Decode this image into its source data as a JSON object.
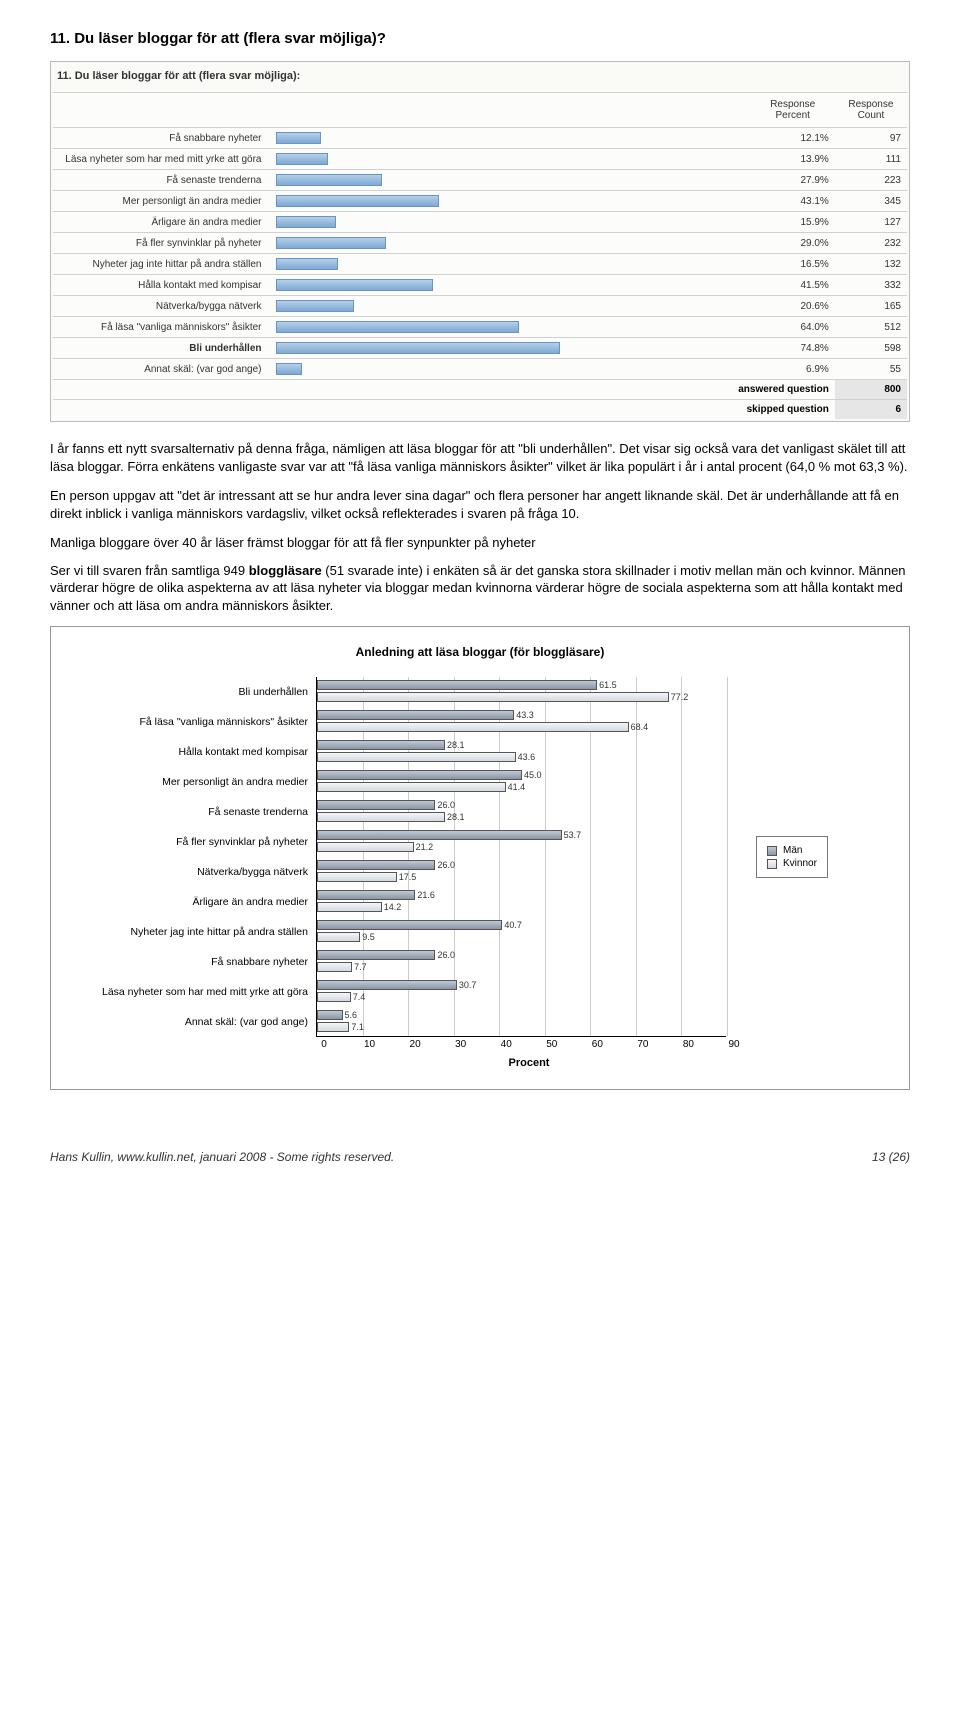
{
  "heading": "11. Du läser bloggar för att (flera svar möjliga)?",
  "survey": {
    "title": "11. Du läser bloggar för att (flera svar möjliga):",
    "headers": {
      "pct": "Response Percent",
      "cnt": "Response Count"
    },
    "bar_color_top": "#b5cfe8",
    "bar_color_bottom": "#7fa9d4",
    "bar_border": "#6a94c0",
    "max_pct": 100,
    "rows": [
      {
        "label": "Få snabbare nyheter",
        "pct": "12.1%",
        "cnt": "97",
        "val": 12.1
      },
      {
        "label": "Läsa nyheter som har med mitt yrke att göra",
        "pct": "13.9%",
        "cnt": "111",
        "val": 13.9
      },
      {
        "label": "Få senaste trenderna",
        "pct": "27.9%",
        "cnt": "223",
        "val": 27.9
      },
      {
        "label": "Mer personligt än andra medier",
        "pct": "43.1%",
        "cnt": "345",
        "val": 43.1
      },
      {
        "label": "Ärligare än andra medier",
        "pct": "15.9%",
        "cnt": "127",
        "val": 15.9
      },
      {
        "label": "Få fler synvinklar på nyheter",
        "pct": "29.0%",
        "cnt": "232",
        "val": 29.0
      },
      {
        "label": "Nyheter jag inte hittar på andra ställen",
        "pct": "16.5%",
        "cnt": "132",
        "val": 16.5
      },
      {
        "label": "Hålla kontakt med kompisar",
        "pct": "41.5%",
        "cnt": "332",
        "val": 41.5
      },
      {
        "label": "Nätverka/bygga nätverk",
        "pct": "20.6%",
        "cnt": "165",
        "val": 20.6
      },
      {
        "label": "Få läsa \"vanliga människors\" åsikter",
        "pct": "64.0%",
        "cnt": "512",
        "val": 64.0
      },
      {
        "label": "Bli underhållen",
        "pct": "74.8%",
        "cnt": "598",
        "val": 74.8,
        "bold": true
      },
      {
        "label": "Annat skäl: (var god ange)",
        "pct": "6.9%",
        "cnt": "55",
        "val": 6.9
      }
    ],
    "answered_label": "answered question",
    "answered_value": "800",
    "skipped_label": "skipped question",
    "skipped_value": "6"
  },
  "paragraphs": {
    "p1": "I år fanns ett nytt svarsalternativ på denna fråga, nämligen att läsa bloggar för att \"bli underhållen\". Det visar sig också vara det vanligast skälet till att läsa bloggar. Förra enkätens vanligaste svar var att \"få läsa vanliga människors åsikter\" vilket är lika populärt i år i antal procent (64,0 % mot 63,3 %).",
    "p2": "En person uppgav att \"det är intressant att se hur andra lever sina dagar\" och flera personer har angett liknande skäl. Det är underhållande att få en direkt inblick i vanliga människors vardagsliv, vilket också reflekterades i svaren på fråga 10.",
    "subhead": "Manliga bloggare över 40 år läser främst bloggar för att få fler synpunkter på nyheter",
    "p3a": "Ser vi till svaren från samtliga 949 ",
    "p3b": "bloggläsare",
    "p3c": " (51 svarade inte) i enkäten så är det ganska stora skillnader i motiv mellan män och kvinnor. Männen värderar högre de olika aspekterna av att läsa nyheter via bloggar medan kvinnorna värderar högre de sociala aspekterna som att hålla kontakt med vänner och att läsa om andra människors åsikter."
  },
  "chart": {
    "title": "Anledning att läsa bloggar (för bloggläsare)",
    "x_title": "Procent",
    "x_max": 90,
    "x_ticks": [
      0,
      10,
      20,
      30,
      40,
      50,
      60,
      70,
      80,
      90
    ],
    "colors": {
      "men_fill": "#9aa5b5",
      "men_fill_grad": "linear-gradient(#c0c8d3,#8a95a6)",
      "women_fill": "#e8ebef",
      "women_fill_grad": "linear-gradient(#f4f6f9,#d4d9e0)",
      "grid": "#cccccc",
      "border": "#555555"
    },
    "legend": {
      "men": "Män",
      "women": "Kvinnor"
    },
    "categories": [
      {
        "label": "Bli underhållen",
        "men": 61.5,
        "women": 77.2
      },
      {
        "label": "Få läsa \"vanliga människors\" åsikter",
        "men": 43.3,
        "women": 68.4
      },
      {
        "label": "Hålla kontakt med kompisar",
        "men": 28.1,
        "women": 43.6
      },
      {
        "label": "Mer personligt än andra medier",
        "men": 45.0,
        "women": 41.4
      },
      {
        "label": "Få senaste trenderna",
        "men": 26.0,
        "women": 28.1
      },
      {
        "label": "Få fler synvinklar på nyheter",
        "men": 53.7,
        "women": 21.2
      },
      {
        "label": "Nätverka/bygga nätverk",
        "men": 26.0,
        "women": 17.5
      },
      {
        "label": "Ärligare än andra medier",
        "men": 21.6,
        "women": 14.2
      },
      {
        "label": "Nyheter jag inte hittar på andra ställen",
        "men": 40.7,
        "women": 9.5
      },
      {
        "label": "Få snabbare nyheter",
        "men": 26.0,
        "women": 7.7
      },
      {
        "label": "Läsa nyheter som har med mitt yrke att göra",
        "men": 30.7,
        "women": 7.4
      },
      {
        "label": "Annat skäl: (var god ange)",
        "men": 5.6,
        "women": 7.1
      }
    ]
  },
  "footer": {
    "left": "Hans Kullin, www.kullin.net, januari 2008 - Some rights reserved.",
    "right": "13 (26)"
  }
}
